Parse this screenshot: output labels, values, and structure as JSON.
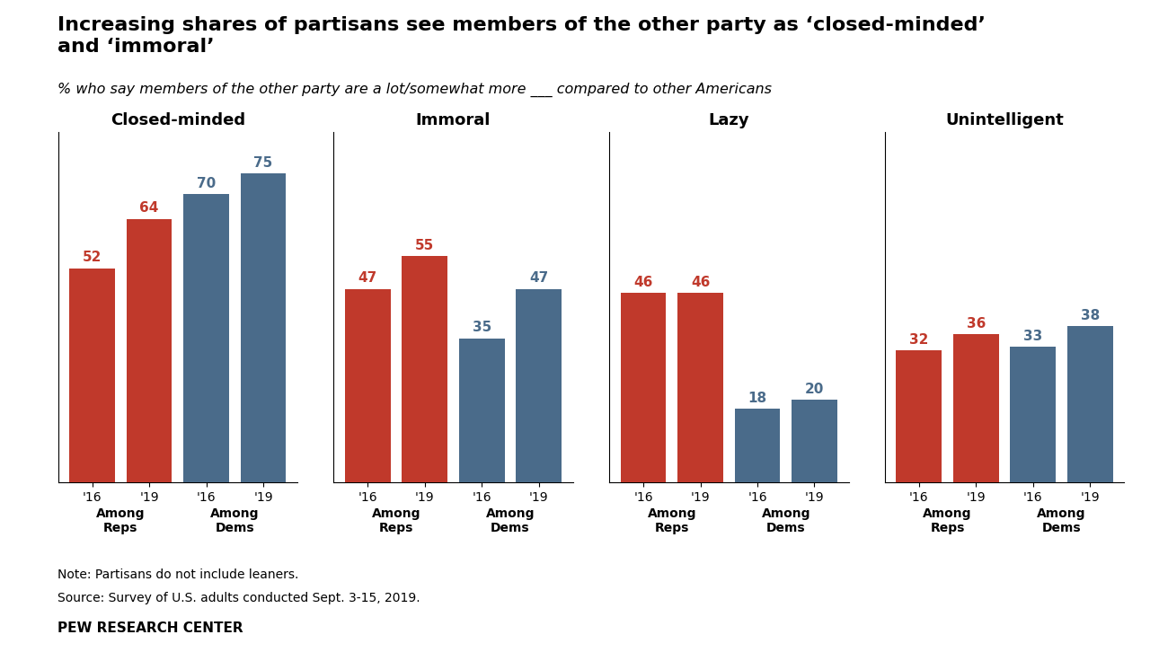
{
  "title": "Increasing shares of partisans see members of the other party as ‘closed-minded’\nand ‘immoral’",
  "subtitle": "% who say members of the other party are a lot/somewhat more ___ compared to other Americans",
  "notes": [
    "Note: Partisans do not include leaners.",
    "Source: Survey of U.S. adults conducted Sept. 3-15, 2019."
  ],
  "source": "PEW RESEARCH CENTER",
  "chart_data": [
    {
      "type": "bar",
      "title": "Closed-minded",
      "categories": [
        "'16",
        "'19",
        "'16",
        "'19"
      ],
      "series": [
        {
          "name": "Among\nReps",
          "color": "#c0392b",
          "values": [
            52,
            64,
            null,
            null
          ]
        },
        {
          "name": "Among\nDems",
          "color": "#4a6b8a",
          "values": [
            null,
            null,
            70,
            75
          ]
        }
      ],
      "ylim": [
        0,
        85
      ],
      "yticks": [],
      "tick_labels": "x",
      "data_labels": true
    },
    {
      "type": "bar",
      "title": "Immoral",
      "categories": [
        "'16",
        "'19",
        "'16",
        "'19"
      ],
      "series": [
        {
          "name": "Among\nReps",
          "color": "#c0392b",
          "values": [
            47,
            55,
            null,
            null
          ]
        },
        {
          "name": "Among\nDems",
          "color": "#4a6b8a",
          "values": [
            null,
            null,
            35,
            47
          ]
        }
      ],
      "ylim": [
        0,
        85
      ],
      "yticks": [],
      "tick_labels": "x",
      "data_labels": true
    },
    {
      "type": "bar",
      "title": "Lazy",
      "categories": [
        "'16",
        "'19",
        "'16",
        "'19"
      ],
      "series": [
        {
          "name": "Among\nReps",
          "color": "#c0392b",
          "values": [
            46,
            46,
            null,
            null
          ]
        },
        {
          "name": "Among\nDems",
          "color": "#4a6b8a",
          "values": [
            null,
            null,
            18,
            20
          ]
        }
      ],
      "ylim": [
        0,
        85
      ],
      "yticks": [],
      "tick_labels": "x",
      "data_labels": true
    },
    {
      "type": "bar",
      "title": "Unintelligent",
      "categories": [
        "'16",
        "'19",
        "'16",
        "'19"
      ],
      "series": [
        {
          "name": "Among\nReps",
          "color": "#c0392b",
          "values": [
            32,
            36,
            null,
            null
          ]
        },
        {
          "name": "Among\nDems",
          "color": "#4a6b8a",
          "values": [
            null,
            null,
            33,
            38
          ]
        }
      ],
      "ylim": [
        0,
        85
      ],
      "yticks": [],
      "tick_labels": "x",
      "data_labels": true
    }
  ]
}
